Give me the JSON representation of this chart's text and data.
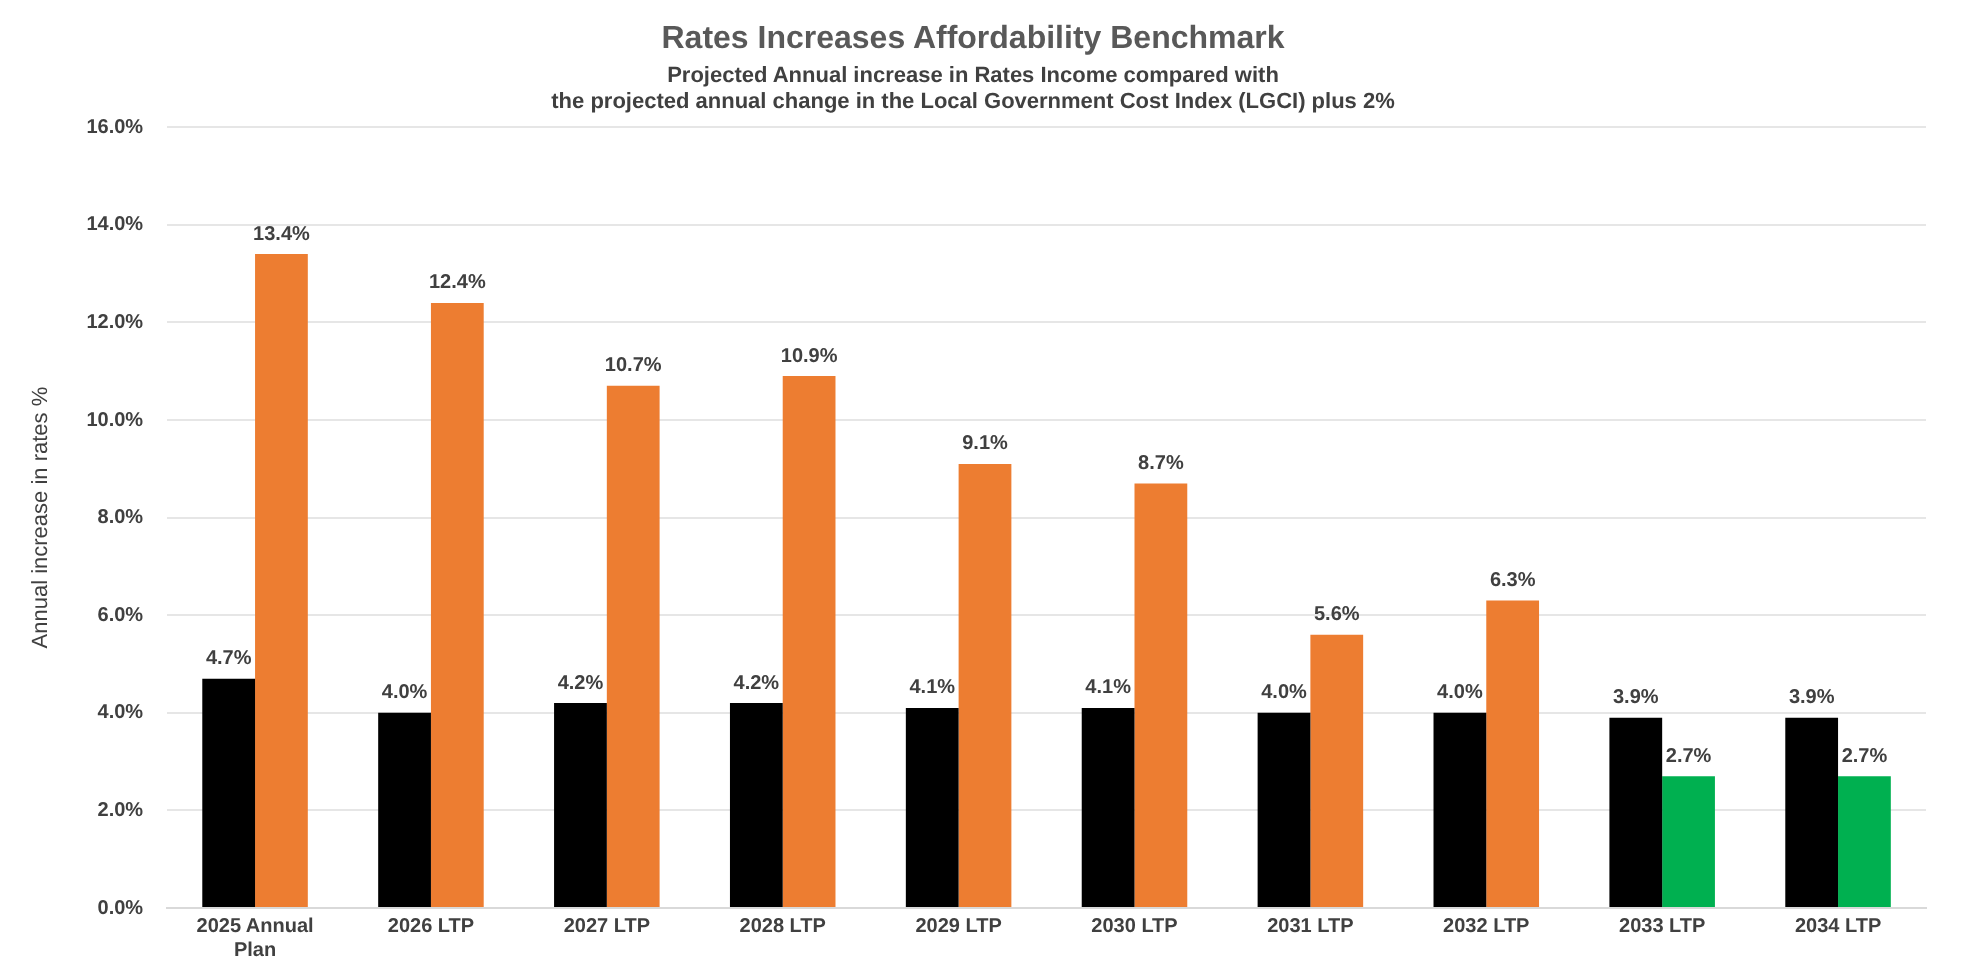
{
  "chart_data": {
    "type": "bar",
    "title": "Rates Increases Affordability Benchmark",
    "subtitle": "Projected Annual increase in Rates Income compared with\nthe projected annual change in the Local Government Cost Index (LGCI) plus 2%",
    "ylabel": "Annual increase in rates %",
    "categories": [
      "2025 Annual Plan",
      "2026 LTP",
      "2027 LTP",
      "2028 LTP",
      "2029 LTP",
      "2030 LTP",
      "2031 LTP",
      "2032 LTP",
      "2033 LTP",
      "2034 LTP"
    ],
    "series": [
      {
        "color": "#000000",
        "values": [
          4.7,
          4.0,
          4.2,
          4.2,
          4.1,
          4.1,
          4.0,
          4.0,
          3.9,
          3.9
        ],
        "value_labels": [
          "4.7%",
          "4.0%",
          "4.2%",
          "4.2%",
          "4.1%",
          "4.1%",
          "4.0%",
          "4.0%",
          "3.9%",
          "3.9%"
        ]
      },
      {
        "colors": [
          "#ed7d31",
          "#ed7d31",
          "#ed7d31",
          "#ed7d31",
          "#ed7d31",
          "#ed7d31",
          "#ed7d31",
          "#ed7d31",
          "#00b050",
          "#00b050"
        ],
        "values": [
          13.4,
          12.4,
          10.7,
          10.9,
          9.1,
          8.7,
          5.6,
          6.3,
          2.7,
          2.7
        ],
        "value_labels": [
          "13.4%",
          "12.4%",
          "10.7%",
          "10.9%",
          "9.1%",
          "8.7%",
          "5.6%",
          "6.3%",
          "2.7%",
          "2.7%"
        ]
      }
    ],
    "ylim": [
      0,
      16
    ],
    "yticks": [
      {
        "value": 0,
        "label": "0.0%"
      },
      {
        "value": 2,
        "label": "2.0%"
      },
      {
        "value": 4,
        "label": "4.0%"
      },
      {
        "value": 6,
        "label": "6.0%"
      },
      {
        "value": 8,
        "label": "8.0%"
      },
      {
        "value": 10,
        "label": "10.0%"
      },
      {
        "value": 12,
        "label": "12.0%"
      },
      {
        "value": 14,
        "label": "14.0%"
      },
      {
        "value": 16,
        "label": "16.0%"
      }
    ],
    "grid": "y",
    "legend": false
  }
}
